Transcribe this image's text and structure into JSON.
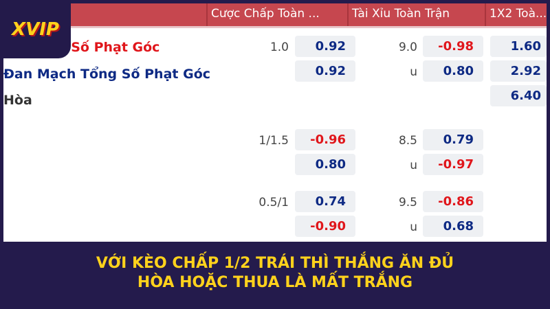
{
  "logo": "XVIP",
  "header": {
    "columns": [
      "Cược Chấp Toàn ...",
      "Tài Xỉu Toàn Trận",
      "1X2 Toà..."
    ]
  },
  "teams": [
    "g Số Phạt Góc",
    "Đan Mạch Tổng Số Phạt Góc",
    "Hòa"
  ],
  "rows": [
    {
      "hcap_line": "1.0",
      "hcap_home": "0.92",
      "hcap_away": "0.92",
      "ou_line": "9.0",
      "ou_over": "-0.98",
      "ou_under_label": "u",
      "ou_under": "0.80",
      "x12": [
        "1.60",
        "2.92",
        "6.40"
      ]
    },
    {
      "hcap_line": "1/1.5",
      "hcap_home": "-0.96",
      "hcap_away": "0.80",
      "ou_line": "8.5",
      "ou_over": "0.79",
      "ou_under_label": "u",
      "ou_under": "-0.97"
    },
    {
      "hcap_line": "0.5/1",
      "hcap_home": "0.74",
      "hcap_away": "-0.90",
      "ou_line": "9.5",
      "ou_over": "-0.86",
      "ou_under_label": "u",
      "ou_under": "0.68"
    }
  ],
  "caption": [
    "VỚI KÈO CHẤP 1/2 TRÁI THÌ THẮNG ĂN ĐỦ",
    "HÒA HOẶC THUA LÀ MẤT TRẮNG"
  ],
  "colors": {
    "header": "#c6474f",
    "positive": "#0e2a84",
    "negative": "#e0161b",
    "caption": "#ffd21c",
    "background": "#241b4c"
  }
}
